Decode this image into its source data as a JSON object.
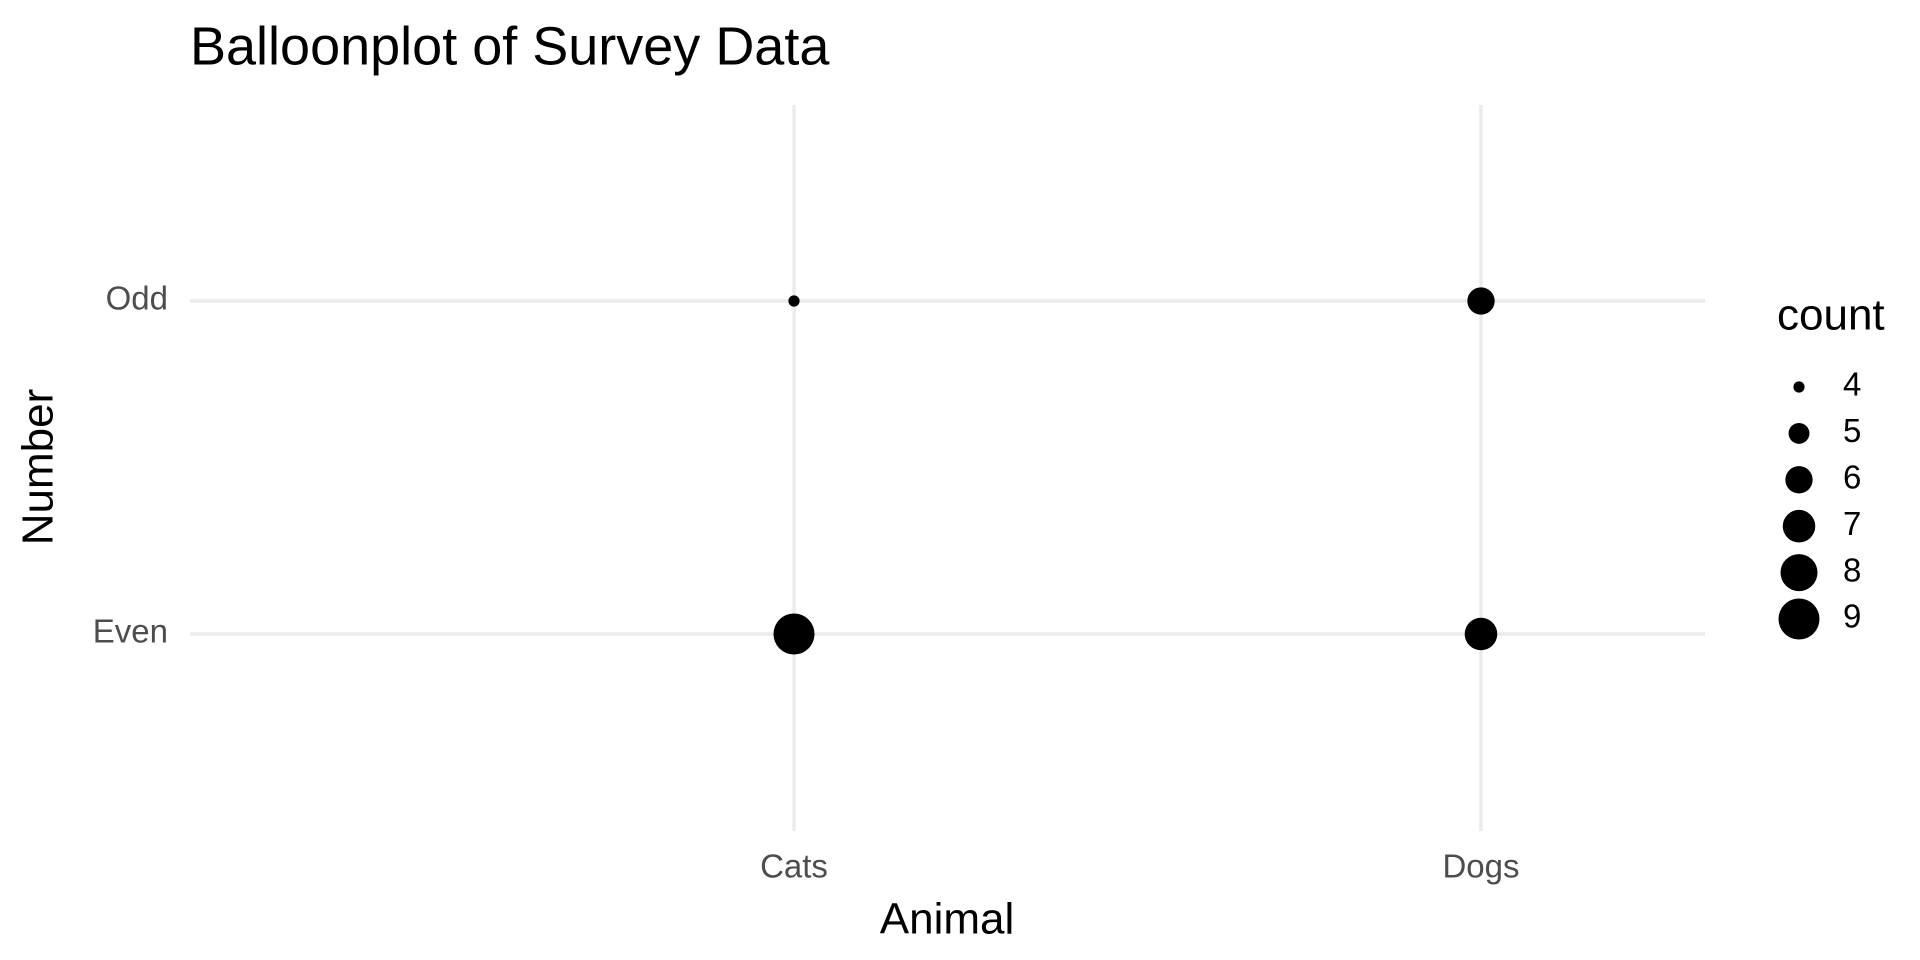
{
  "chart_data": {
    "type": "balloon",
    "title": "Balloonplot of Survey Data",
    "x_label": "Animal",
    "y_label": "Number",
    "categories": [
      "Cats",
      "Dogs"
    ],
    "series": [
      {
        "name": "Odd",
        "color": "#000000",
        "values": [
          4,
          6
        ]
      },
      {
        "name": "Even",
        "color": "#000000",
        "values": [
          9,
          7
        ]
      }
    ],
    "size_legend": {
      "title": "count",
      "values": [
        4,
        5,
        6,
        7,
        8,
        9
      ]
    },
    "grid": true
  }
}
